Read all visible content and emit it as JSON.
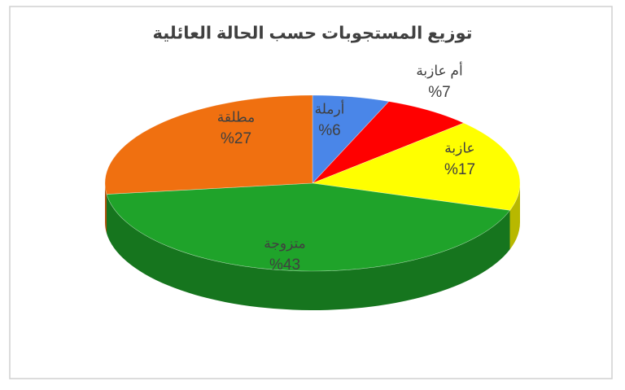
{
  "chart_data": {
    "type": "pie",
    "title": "توزيع المستجوبات حسب الحالة العائلية",
    "categories": [
      "أرملة",
      "أم عازبة",
      "عازبة",
      "متزوجة",
      "مطلقة"
    ],
    "values": [
      6,
      7,
      17,
      43,
      27
    ],
    "value_labels": [
      "%6",
      "%7",
      "%17",
      "%43",
      "%27"
    ],
    "colors": [
      "#4a86e8",
      "#ff0000",
      "#ffff00",
      "#1fa32a",
      "#f07010"
    ]
  }
}
